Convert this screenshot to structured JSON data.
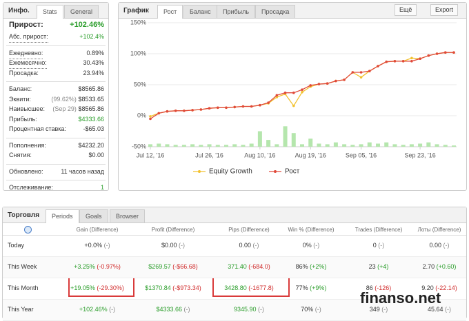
{
  "info": {
    "title": "Инфо.",
    "tabs": [
      "Stats",
      "General"
    ],
    "groups": [
      [
        {
          "label": "Прирост:",
          "value": "+102.46%"
        },
        {
          "label": "Абс. прирост:",
          "value": "+102.4%"
        }
      ],
      [
        {
          "label": "Ежедневно:",
          "value": "0.89%"
        },
        {
          "label": "Ежемесячно:",
          "value": "30.43%"
        },
        {
          "label": "Просадка:",
          "value": "23.94%"
        }
      ],
      [
        {
          "label": "Баланс:",
          "value": "$8565.86"
        },
        {
          "label": "Эквити:",
          "note": "(99.62%)",
          "value": "$8533.65"
        },
        {
          "label": "Наивысшее:",
          "note": "(Sep 29)",
          "value": "$8565.86"
        },
        {
          "label": "Прибыль:",
          "value": "$4333.66"
        },
        {
          "label": "Процентная ставка:",
          "value": "-$65.03"
        }
      ],
      [
        {
          "label": "Пополнения:",
          "value": "$4232.20"
        },
        {
          "label": "Снятия:",
          "value": "$0.00"
        }
      ],
      [
        {
          "label": "Обновлено:",
          "value": "11 часов назад"
        }
      ],
      [
        {
          "label": "Отслеживание:",
          "value": "1"
        }
      ]
    ]
  },
  "chart_panel": {
    "title": "График",
    "tabs": [
      "Рост",
      "Баланс",
      "Прибыль",
      "Просадка"
    ],
    "buttons": [
      "Ещё",
      "Export"
    ]
  },
  "chart_data": {
    "type": "line",
    "grid": true,
    "ylim": [
      -50,
      150
    ],
    "yticks": [
      {
        "value": -50,
        "label": "-50%"
      },
      {
        "value": 0,
        "label": "0%"
      },
      {
        "value": 50,
        "label": "50%"
      },
      {
        "value": 100,
        "label": "100%"
      },
      {
        "value": 150,
        "label": "150%"
      }
    ],
    "categories": [
      "Jul 12, '16",
      null,
      null,
      null,
      null,
      null,
      null,
      "Jul 26, '16",
      null,
      null,
      null,
      null,
      null,
      "Aug 10, '16",
      null,
      null,
      null,
      null,
      null,
      "Aug 19, '16",
      null,
      null,
      null,
      null,
      null,
      "Sep 05, '16",
      null,
      null,
      null,
      null,
      null,
      null,
      "Sep 23, '16",
      null,
      null,
      null,
      null
    ],
    "series": [
      {
        "name": "Equity Growth",
        "color": "#f2c12e",
        "values": [
          -1,
          4,
          7,
          8,
          8,
          9,
          10,
          12,
          13,
          13,
          14,
          15,
          15,
          17,
          20,
          30,
          35,
          16,
          38,
          47,
          51,
          52,
          56,
          58,
          70,
          62,
          72,
          80,
          87,
          88,
          88,
          93,
          92,
          97,
          100,
          102,
          102
        ]
      },
      {
        "name": "Рост",
        "color": "#e0493a",
        "values": [
          -5,
          4,
          7,
          8,
          8,
          9,
          10,
          12,
          13,
          13,
          14,
          15,
          15,
          17,
          21,
          33,
          37,
          37,
          42,
          49,
          51,
          52,
          56,
          58,
          70,
          70,
          72,
          80,
          87,
          88,
          88,
          88,
          92,
          97,
          100,
          102,
          102
        ]
      }
    ],
    "bars": {
      "color": "#b5e6ad",
      "values": [
        -46,
        -45,
        -46,
        -47,
        -47,
        -46,
        -47,
        -46,
        -47,
        -47,
        -46,
        -47,
        -45,
        -25,
        -39,
        -46,
        -17,
        -28,
        -46,
        -37,
        -45,
        -46,
        -43,
        -46,
        -47,
        -46,
        -43,
        -45,
        -43,
        -46,
        -47,
        -46,
        -45,
        -43,
        -46,
        -47,
        -48
      ]
    }
  },
  "trading": {
    "title": "Торговля",
    "tabs": [
      "Periods",
      "Goals",
      "Browser"
    ],
    "columns": [
      "Gain (Difference)",
      "Profit (Difference)",
      "Pips (Difference)",
      "Win % (Difference)",
      "Trades (Difference)",
      "Лоты (Difference)"
    ],
    "rows": [
      {
        "period": "Today",
        "cells": [
          [
            "+0.0%",
            "(-)"
          ],
          [
            "$0.00",
            "(-)"
          ],
          [
            "0.00",
            "(-)"
          ],
          [
            "0%",
            "(-)"
          ],
          [
            "0",
            "(-)"
          ],
          [
            "0.00",
            "(-)"
          ]
        ]
      },
      {
        "period": "This Week",
        "cells": [
          [
            "+3.25%",
            "(-0.97%)"
          ],
          [
            "$269.57",
            "(-$66.68)"
          ],
          [
            "371.40",
            "(-684.0)"
          ],
          [
            "86%",
            "(+2%)"
          ],
          [
            "23",
            "(+4)"
          ],
          [
            "2.70",
            "(+0.60)"
          ]
        ]
      },
      {
        "period": "This Month",
        "cells": [
          [
            "+19.05%",
            "(-29.30%)"
          ],
          [
            "$1370.84",
            "(-$973.34)"
          ],
          [
            "3428.80",
            "(-1677.8)"
          ],
          [
            "77%",
            "(+9%)"
          ],
          [
            "86",
            "(-126)"
          ],
          [
            "9.20",
            "(-22.14)"
          ]
        ]
      },
      {
        "period": "This Year",
        "cells": [
          [
            "+102.46%",
            "(-)"
          ],
          [
            "$4333.66",
            "(-)"
          ],
          [
            "9345.90",
            "(-)"
          ],
          [
            "70%",
            "(-)"
          ],
          [
            "349",
            "(-)"
          ],
          [
            "45.64",
            "(-)"
          ]
        ]
      }
    ]
  },
  "watermark": "finanso.net"
}
